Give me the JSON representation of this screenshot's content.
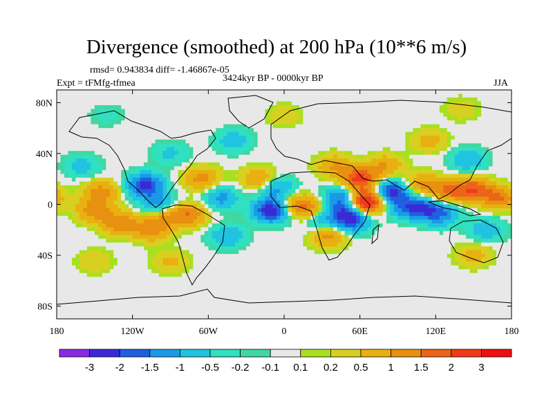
{
  "title": "Divergence (smoothed) at 200 hPa (10**6 m/s)",
  "stats_line": "rmsd= 0.943834 diff= -1.46867e-05",
  "period_line": "3424kyr BP - 0000kyr BP",
  "experiment_line": "Expt = tFMfg-tfmea",
  "season": "JJA",
  "chart_data": {
    "type": "heatmap",
    "projection": "cylindrical-equidistant",
    "variable": "Divergence (smoothed) at 200 hPa",
    "units": "10**6 m/s",
    "xlim": [
      -180,
      180
    ],
    "ylim": [
      -90,
      90
    ],
    "x_ticks": [
      {
        "value": -180,
        "label": "180"
      },
      {
        "value": -120,
        "label": "120W"
      },
      {
        "value": -60,
        "label": "60W"
      },
      {
        "value": 0,
        "label": "0"
      },
      {
        "value": 60,
        "label": "60E"
      },
      {
        "value": 120,
        "label": "120E"
      },
      {
        "value": 180,
        "label": "180"
      }
    ],
    "y_ticks": [
      {
        "value": 80,
        "label": "80N"
      },
      {
        "value": 40,
        "label": "40N"
      },
      {
        "value": 0,
        "label": "0"
      },
      {
        "value": -40,
        "label": "40S"
      },
      {
        "value": -80,
        "label": "80S"
      }
    ],
    "contour_levels": [
      "-3",
      "-2",
      "-1.5",
      "-1",
      "-0.5",
      "-0.2",
      "-0.1",
      "0.1",
      "0.2",
      "0.5",
      "1",
      "1.5",
      "2",
      "3"
    ],
    "colors": [
      "#8a2be2",
      "#3a2ad6",
      "#1f5fe0",
      "#1a9ae6",
      "#20c4e0",
      "#30e0c0",
      "#40d8a0",
      "#e8e8e8",
      "#a8e020",
      "#d8d020",
      "#e8b010",
      "#e89010",
      "#ec6418",
      "#f03a1c",
      "#ee1010"
    ],
    "anomaly_centers": [
      {
        "lon": -110,
        "lat": 15,
        "value": -2.2
      },
      {
        "lon": -100,
        "lat": 0,
        "value": -1.2
      },
      {
        "lon": -145,
        "lat": 10,
        "value": 1.2
      },
      {
        "lon": -150,
        "lat": -5,
        "value": 1.3
      },
      {
        "lon": -130,
        "lat": -15,
        "value": 1.4
      },
      {
        "lon": -105,
        "lat": -20,
        "value": 1.2
      },
      {
        "lon": -95,
        "lat": -10,
        "value": 1.0
      },
      {
        "lon": -75,
        "lat": -8,
        "value": 1.4
      },
      {
        "lon": -65,
        "lat": 20,
        "value": 1.2
      },
      {
        "lon": -50,
        "lat": 5,
        "value": -1.2
      },
      {
        "lon": -45,
        "lat": -25,
        "value": -1.0
      },
      {
        "lon": -20,
        "lat": 20,
        "value": 1.0
      },
      {
        "lon": -10,
        "lat": -5,
        "value": -2.5
      },
      {
        "lon": -5,
        "lat": 12,
        "value": -1.2
      },
      {
        "lon": 10,
        "lat": 0,
        "value": 1.2
      },
      {
        "lon": 20,
        "lat": -5,
        "value": 1.1
      },
      {
        "lon": 28,
        "lat": -12,
        "value": -1.0
      },
      {
        "lon": 35,
        "lat": -25,
        "value": 1.2
      },
      {
        "lon": 45,
        "lat": 5,
        "value": -1.6
      },
      {
        "lon": 50,
        "lat": -8,
        "value": -2.0
      },
      {
        "lon": 55,
        "lat": -15,
        "value": -1.0
      },
      {
        "lon": 40,
        "lat": 30,
        "value": 1.0
      },
      {
        "lon": 65,
        "lat": 2,
        "value": 3.2
      },
      {
        "lon": 60,
        "lat": 20,
        "value": 2.2
      },
      {
        "lon": 85,
        "lat": 10,
        "value": -2.2
      },
      {
        "lon": 80,
        "lat": 30,
        "value": 1.0
      },
      {
        "lon": 95,
        "lat": -2,
        "value": -1.2
      },
      {
        "lon": 110,
        "lat": -3,
        "value": -1.7
      },
      {
        "lon": 125,
        "lat": -8,
        "value": -1.3
      },
      {
        "lon": 110,
        "lat": 15,
        "value": 1.2
      },
      {
        "lon": 130,
        "lat": 10,
        "value": 1.4
      },
      {
        "lon": 150,
        "lat": 12,
        "value": 1.8
      },
      {
        "lon": 170,
        "lat": 5,
        "value": 1.5
      },
      {
        "lon": 145,
        "lat": 35,
        "value": -1.0
      },
      {
        "lon": 115,
        "lat": 50,
        "value": 0.7
      },
      {
        "lon": 160,
        "lat": -20,
        "value": -0.9
      },
      {
        "lon": 150,
        "lat": -40,
        "value": 0.7
      },
      {
        "lon": -150,
        "lat": -45,
        "value": 0.5
      },
      {
        "lon": -90,
        "lat": -45,
        "value": 0.6
      },
      {
        "lon": -90,
        "lat": 40,
        "value": -0.6
      },
      {
        "lon": -40,
        "lat": 50,
        "value": -0.8
      },
      {
        "lon": -160,
        "lat": 30,
        "value": -0.7
      },
      {
        "lon": 0,
        "lat": 70,
        "value": 0.4
      },
      {
        "lon": 140,
        "lat": 75,
        "value": 0.4
      },
      {
        "lon": -140,
        "lat": 70,
        "value": -0.3
      }
    ]
  }
}
